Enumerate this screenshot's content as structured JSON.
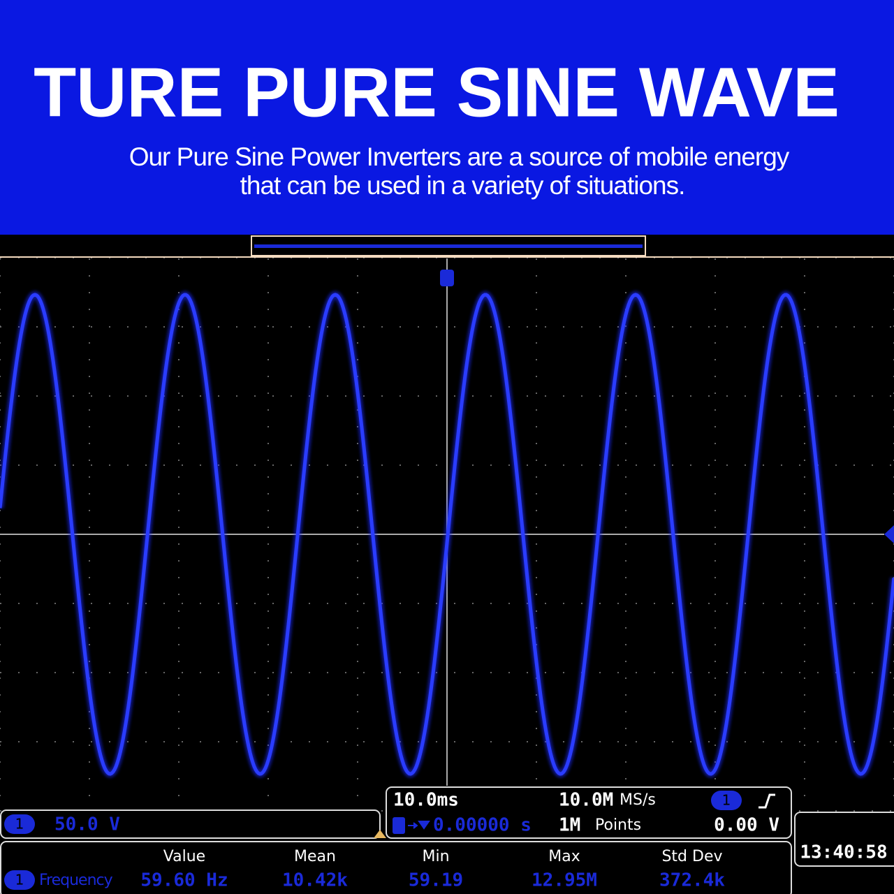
{
  "header": {
    "title": "TURE PURE SINE WAVE",
    "subtitle": [
      "Our Pure Sine Power Inverters are a source of mobile energy",
      "that can be used in a variety of situations."
    ]
  },
  "scope": {
    "channel": {
      "badge": "1",
      "scale": "50.0 V"
    },
    "timebase": {
      "scale": "10.0ms",
      "rate": "10.0M",
      "rate_unit": "MS/s",
      "trigger_badge": "1",
      "position": "0.00000 s",
      "points": "1M",
      "points_unit": "Points",
      "trigger_level": "0.00 V"
    },
    "clock": "13:40:58",
    "measurements": {
      "headers": [
        "Value",
        "Mean",
        "Min",
        "Max",
        "Std Dev"
      ],
      "row": {
        "badge": "1",
        "name": "Frequency",
        "cells": [
          "59.60 Hz",
          "10.42k",
          "59.19",
          "12.95M",
          "372.4k"
        ]
      }
    }
  }
}
